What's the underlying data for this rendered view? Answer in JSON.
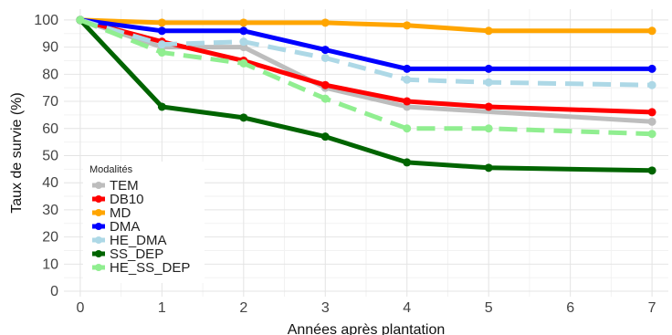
{
  "chart_data": {
    "type": "line",
    "xlabel": "Années après plantation",
    "ylabel": "Taux de survie (%)",
    "x_ticks": [
      "0",
      "1",
      "2",
      "3",
      "4",
      "5",
      "6",
      "7"
    ],
    "y_ticks": [
      "0",
      "10",
      "20",
      "30",
      "40",
      "50",
      "60",
      "70",
      "80",
      "90",
      "100"
    ],
    "xlim": [
      -0.2,
      7.2
    ],
    "ylim": [
      -2,
      104
    ],
    "grid": true,
    "legend": {
      "title": "Modalités",
      "position": "bottom-left"
    },
    "series": [
      {
        "name": "TEM",
        "color": "#bdbdbd",
        "dashed": false,
        "x": [
          0,
          1,
          2,
          3,
          4,
          7
        ],
        "y": [
          100,
          90,
          90,
          75,
          68,
          62.5
        ]
      },
      {
        "name": "DB10",
        "color": "#ff0000",
        "dashed": false,
        "x": [
          0,
          1,
          2,
          3,
          4,
          5,
          7
        ],
        "y": [
          100,
          92,
          85,
          76,
          70,
          68,
          66
        ]
      },
      {
        "name": "MD",
        "color": "#ffa500",
        "dashed": false,
        "x": [
          0,
          1,
          2,
          3,
          4,
          5,
          7
        ],
        "y": [
          100,
          99,
          99,
          99,
          98,
          96,
          96
        ]
      },
      {
        "name": "DMA",
        "color": "#0000ff",
        "dashed": false,
        "x": [
          0,
          1,
          2,
          3,
          4,
          5,
          7
        ],
        "y": [
          100,
          96,
          96,
          89,
          82,
          82,
          82
        ]
      },
      {
        "name": "HE_DMA",
        "color": "#add8e6",
        "dashed": true,
        "x": [
          0,
          1,
          2,
          3,
          4,
          5,
          7
        ],
        "y": [
          100,
          91,
          92,
          86,
          78,
          77,
          76
        ]
      },
      {
        "name": "SS_DEP",
        "color": "#006400",
        "dashed": false,
        "x": [
          0,
          1,
          2,
          3,
          4,
          5,
          7
        ],
        "y": [
          100,
          68,
          64,
          57,
          47.5,
          45.5,
          44.5
        ]
      },
      {
        "name": "HE_SS_DEP",
        "color": "#90ee90",
        "dashed": true,
        "x": [
          0,
          1,
          2,
          3,
          4,
          5,
          7
        ],
        "y": [
          100,
          88,
          84,
          71,
          60,
          60,
          58
        ]
      }
    ]
  }
}
